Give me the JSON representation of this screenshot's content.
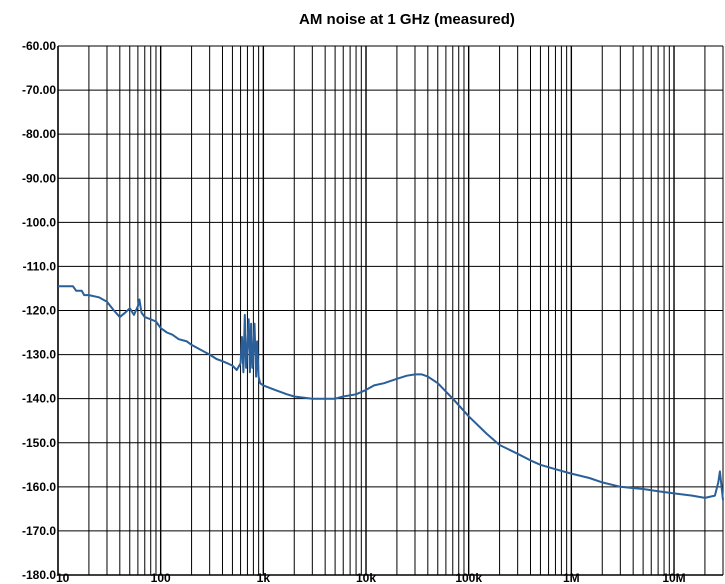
{
  "chart_data": {
    "type": "line",
    "title": "AM noise at 1 GHz (measured)",
    "xlabel": "",
    "ylabel": "",
    "x_scale": "log",
    "xlim": [
      10,
      30000000
    ],
    "ylim": [
      -180,
      -60
    ],
    "grid": true,
    "legend": "none",
    "x_ticks": [
      {
        "value": 10,
        "label": "10"
      },
      {
        "value": 100,
        "label": "100"
      },
      {
        "value": 1000,
        "label": "1k"
      },
      {
        "value": 10000,
        "label": "10k"
      },
      {
        "value": 100000,
        "label": "100k"
      },
      {
        "value": 1000000,
        "label": "1M"
      },
      {
        "value": 10000000,
        "label": "10M"
      }
    ],
    "y_ticks": [
      {
        "value": -60,
        "label": "-60.00"
      },
      {
        "value": -70,
        "label": "-70.00"
      },
      {
        "value": -80,
        "label": "-80.00"
      },
      {
        "value": -90,
        "label": "-90.00"
      },
      {
        "value": -100,
        "label": "-100.0"
      },
      {
        "value": -110,
        "label": "-110.0"
      },
      {
        "value": -120,
        "label": "-120.0"
      },
      {
        "value": -130,
        "label": "-130.0"
      },
      {
        "value": -140,
        "label": "-140.0"
      },
      {
        "value": -150,
        "label": "-150.0"
      },
      {
        "value": -160,
        "label": "-160.0"
      },
      {
        "value": -170,
        "label": "-170.0"
      },
      {
        "value": -180,
        "label": "-180.0"
      }
    ],
    "series": [
      {
        "color": "#2a5f9a",
        "x": [
          10,
          14,
          15,
          17,
          18,
          20,
          25,
          30,
          35,
          40,
          45,
          50,
          55,
          60,
          62,
          65,
          70,
          80,
          90,
          100,
          115,
          130,
          150,
          180,
          200,
          250,
          300,
          350,
          400,
          450,
          500,
          550,
          600,
          620,
          640,
          660,
          680,
          700,
          720,
          740,
          760,
          780,
          800,
          820,
          850,
          870,
          900,
          930,
          1000,
          1300,
          1700,
          2000,
          3000,
          4000,
          5000,
          6000,
          8000,
          10000,
          12000,
          15000,
          20000,
          25000,
          30000,
          35000,
          40000,
          50000,
          70000,
          100000,
          150000,
          200000,
          300000,
          400000,
          500000,
          700000,
          1000000,
          1500000,
          2000000,
          3000000,
          5000000,
          7000000,
          10000000,
          15000000,
          20000000,
          25000000,
          27000000,
          28000000,
          30000000
        ],
        "y": [
          -114.5,
          -114.5,
          -115.5,
          -115.5,
          -116.5,
          -116.5,
          -117,
          -118,
          -120,
          -121.5,
          -120.5,
          -119.5,
          -121,
          -119,
          -117.5,
          -120.5,
          -121.5,
          -122,
          -122.5,
          -124,
          -125,
          -125.5,
          -126.5,
          -127,
          -127.8,
          -129,
          -130,
          -131,
          -131.5,
          -132,
          -132.5,
          -133.5,
          -132,
          -126,
          -134,
          -121,
          -133,
          -128,
          -122,
          -134,
          -123,
          -133,
          -129,
          -123,
          -135,
          -127,
          -135,
          -136.5,
          -137,
          -138,
          -139,
          -139.5,
          -140,
          -140,
          -140,
          -139.5,
          -139,
          -138,
          -137,
          -136.5,
          -135.5,
          -134.8,
          -134.5,
          -134.5,
          -135,
          -136.5,
          -140,
          -144,
          -148,
          -150.5,
          -152.5,
          -154,
          -155,
          -156,
          -157,
          -158,
          -159,
          -160,
          -160.5,
          -161,
          -161.5,
          -162,
          -162.5,
          -162,
          -159,
          -156.5,
          -163
        ]
      }
    ]
  }
}
